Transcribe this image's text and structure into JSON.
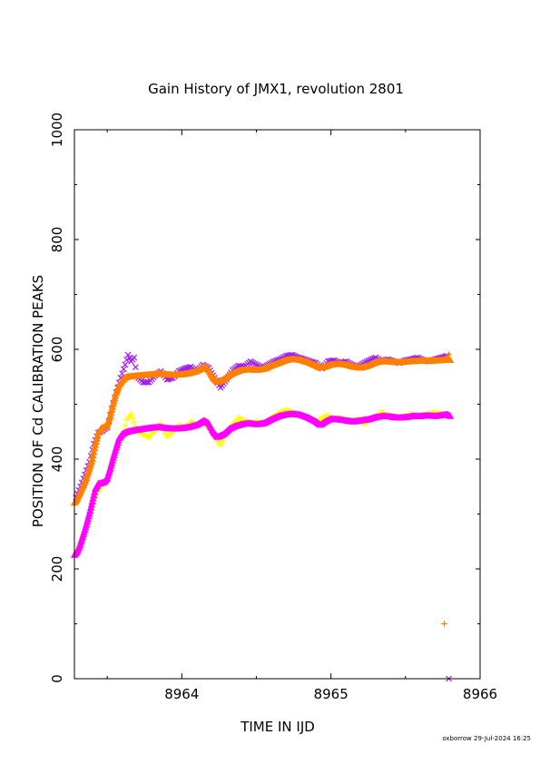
{
  "footer": "oxborrow 29-Jul-2024 16:25",
  "chart_data": {
    "type": "scatter",
    "title": "Gain History of JMX1, revolution 2801",
    "xlabel": "TIME IN IJD",
    "ylabel": "POSITION OF Cd CALIBRATION PEAKS",
    "xlim": [
      8963.28,
      8966
    ],
    "ylim": [
      0,
      1000
    ],
    "xticks": [
      8964,
      8965,
      8966
    ],
    "yticks": [
      0,
      200,
      400,
      600,
      800,
      1000
    ],
    "grid": false,
    "legend": "none",
    "series": [
      {
        "color": "#ffff00",
        "marker": "plus",
        "points": [
          [
            8963.29,
            230
          ],
          [
            8963.32,
            248
          ],
          [
            8963.36,
            275
          ],
          [
            8963.4,
            308
          ],
          [
            8963.43,
            338
          ],
          [
            8963.46,
            350
          ],
          [
            8963.5,
            360
          ],
          [
            8963.53,
            382
          ],
          [
            8963.56,
            412
          ],
          [
            8963.6,
            440
          ],
          [
            8963.63,
            472
          ],
          [
            8963.66,
            482
          ],
          [
            8963.7,
            452
          ],
          [
            8963.74,
            445
          ],
          [
            8963.78,
            440
          ],
          [
            8963.82,
            452
          ],
          [
            8963.86,
            465
          ],
          [
            8963.9,
            440
          ],
          [
            8963.94,
            450
          ],
          [
            8963.98,
            462
          ],
          [
            8964.02,
            455
          ],
          [
            8964.06,
            468
          ],
          [
            8964.1,
            462
          ],
          [
            8964.14,
            470
          ],
          [
            8964.18,
            458
          ],
          [
            8964.22,
            440
          ],
          [
            8964.26,
            425
          ],
          [
            8964.3,
            450
          ],
          [
            8964.34,
            462
          ],
          [
            8964.38,
            475
          ],
          [
            8964.42,
            470
          ],
          [
            8964.46,
            465
          ],
          [
            8964.5,
            468
          ],
          [
            8964.54,
            462
          ],
          [
            8964.58,
            472
          ],
          [
            8964.62,
            478
          ],
          [
            8964.66,
            485
          ],
          [
            8964.7,
            490
          ],
          [
            8964.74,
            485
          ],
          [
            8964.78,
            482
          ],
          [
            8964.82,
            478
          ],
          [
            8964.86,
            472
          ],
          [
            8964.9,
            468
          ],
          [
            8964.94,
            475
          ],
          [
            8964.98,
            480
          ],
          [
            8965.02,
            472
          ],
          [
            8965.06,
            475
          ],
          [
            8965.1,
            470
          ],
          [
            8965.14,
            468
          ],
          [
            8965.18,
            472
          ],
          [
            8965.22,
            465
          ],
          [
            8965.26,
            470
          ],
          [
            8965.3,
            478
          ],
          [
            8965.34,
            485
          ],
          [
            8965.38,
            480
          ],
          [
            8965.42,
            478
          ],
          [
            8965.46,
            475
          ],
          [
            8965.5,
            478
          ],
          [
            8965.54,
            482
          ],
          [
            8965.58,
            478
          ],
          [
            8965.62,
            480
          ],
          [
            8965.66,
            482
          ],
          [
            8965.7,
            485
          ],
          [
            8965.74,
            482
          ],
          [
            8965.78,
            480
          ]
        ]
      },
      {
        "color": "#ff00ff",
        "marker": "triangle",
        "points": [
          [
            8963.28,
            225
          ],
          [
            8963.3,
            232
          ],
          [
            8963.32,
            245
          ],
          [
            8963.34,
            262
          ],
          [
            8963.36,
            280
          ],
          [
            8963.38,
            300
          ],
          [
            8963.4,
            322
          ],
          [
            8963.42,
            345
          ],
          [
            8963.44,
            355
          ],
          [
            8963.46,
            356
          ],
          [
            8963.48,
            358
          ],
          [
            8963.5,
            365
          ],
          [
            8963.52,
            382
          ],
          [
            8963.54,
            402
          ],
          [
            8963.56,
            420
          ],
          [
            8963.58,
            438
          ],
          [
            8963.6,
            445
          ],
          [
            8963.62,
            448
          ],
          [
            8963.64,
            450
          ],
          [
            8963.66,
            451
          ],
          [
            8963.7,
            453
          ],
          [
            8963.75,
            455
          ],
          [
            8963.8,
            457
          ],
          [
            8963.85,
            458
          ],
          [
            8963.9,
            456
          ],
          [
            8963.95,
            455
          ],
          [
            8964.0,
            456
          ],
          [
            8964.05,
            458
          ],
          [
            8964.1,
            462
          ],
          [
            8964.15,
            470
          ],
          [
            8964.18,
            465
          ],
          [
            8964.21,
            450
          ],
          [
            8964.24,
            440
          ],
          [
            8964.28,
            445
          ],
          [
            8964.32,
            455
          ],
          [
            8964.36,
            460
          ],
          [
            8964.4,
            463
          ],
          [
            8964.45,
            465
          ],
          [
            8964.5,
            463
          ],
          [
            8964.55,
            465
          ],
          [
            8964.6,
            472
          ],
          [
            8964.65,
            478
          ],
          [
            8964.7,
            481
          ],
          [
            8964.75,
            482
          ],
          [
            8964.8,
            480
          ],
          [
            8964.85,
            475
          ],
          [
            8964.9,
            468
          ],
          [
            8964.93,
            462
          ],
          [
            8964.96,
            468
          ],
          [
            8965.0,
            473
          ],
          [
            8965.05,
            472
          ],
          [
            8965.1,
            470
          ],
          [
            8965.15,
            468
          ],
          [
            8965.2,
            470
          ],
          [
            8965.25,
            472
          ],
          [
            8965.3,
            476
          ],
          [
            8965.35,
            478
          ],
          [
            8965.4,
            477
          ],
          [
            8965.45,
            475
          ],
          [
            8965.5,
            476
          ],
          [
            8965.55,
            478
          ],
          [
            8965.6,
            478
          ],
          [
            8965.65,
            479
          ],
          [
            8965.7,
            478
          ],
          [
            8965.75,
            480
          ],
          [
            8965.78,
            481
          ],
          [
            8965.8,
            478
          ]
        ]
      },
      {
        "color": "#a020f0",
        "marker": "cross",
        "points": [
          [
            8963.29,
            330
          ],
          [
            8963.32,
            350
          ],
          [
            8963.35,
            372
          ],
          [
            8963.38,
            395
          ],
          [
            8963.41,
            428
          ],
          [
            8963.44,
            448
          ],
          [
            8963.47,
            452
          ],
          [
            8963.5,
            458
          ],
          [
            8963.53,
            492
          ],
          [
            8963.56,
            522
          ],
          [
            8963.59,
            548
          ],
          [
            8963.62,
            572
          ],
          [
            8963.64,
            590
          ],
          [
            8963.66,
            578
          ],
          [
            8963.68,
            585
          ],
          [
            8963.7,
            550
          ],
          [
            8963.74,
            540
          ],
          [
            8963.78,
            540
          ],
          [
            8963.82,
            552
          ],
          [
            8963.86,
            560
          ],
          [
            8963.9,
            545
          ],
          [
            8963.94,
            548
          ],
          [
            8963.98,
            560
          ],
          [
            8964.02,
            565
          ],
          [
            8964.06,
            568
          ],
          [
            8964.1,
            560
          ],
          [
            8964.14,
            572
          ],
          [
            8964.18,
            566
          ],
          [
            8964.22,
            548
          ],
          [
            8964.26,
            530
          ],
          [
            8964.3,
            545
          ],
          [
            8964.34,
            562
          ],
          [
            8964.38,
            570
          ],
          [
            8964.42,
            568
          ],
          [
            8964.46,
            578
          ],
          [
            8964.5,
            572
          ],
          [
            8964.54,
            566
          ],
          [
            8964.58,
            572
          ],
          [
            8964.62,
            578
          ],
          [
            8964.66,
            582
          ],
          [
            8964.7,
            588
          ],
          [
            8964.74,
            590
          ],
          [
            8964.78,
            585
          ],
          [
            8964.82,
            582
          ],
          [
            8964.86,
            578
          ],
          [
            8964.9,
            575
          ],
          [
            8964.94,
            565
          ],
          [
            8964.98,
            578
          ],
          [
            8965.02,
            580
          ],
          [
            8965.06,
            575
          ],
          [
            8965.1,
            578
          ],
          [
            8965.14,
            572
          ],
          [
            8965.18,
            568
          ],
          [
            8965.22,
            575
          ],
          [
            8965.26,
            580
          ],
          [
            8965.3,
            585
          ],
          [
            8965.34,
            578
          ],
          [
            8965.38,
            582
          ],
          [
            8965.42,
            578
          ],
          [
            8965.46,
            575
          ],
          [
            8965.5,
            580
          ],
          [
            8965.54,
            582
          ],
          [
            8965.58,
            585
          ],
          [
            8965.62,
            580
          ],
          [
            8965.66,
            578
          ],
          [
            8965.7,
            582
          ],
          [
            8965.74,
            585
          ],
          [
            8965.78,
            588
          ],
          [
            8965.79,
            0
          ]
        ]
      },
      {
        "color": "#ff8000",
        "marker": "triangle",
        "points": [
          [
            8963.28,
            320
          ],
          [
            8963.3,
            328
          ],
          [
            8963.32,
            340
          ],
          [
            8963.34,
            352
          ],
          [
            8963.36,
            365
          ],
          [
            8963.38,
            382
          ],
          [
            8963.4,
            400
          ],
          [
            8963.42,
            425
          ],
          [
            8963.44,
            448
          ],
          [
            8963.46,
            456
          ],
          [
            8963.48,
            458
          ],
          [
            8963.5,
            462
          ],
          [
            8963.52,
            478
          ],
          [
            8963.54,
            500
          ],
          [
            8963.56,
            520
          ],
          [
            8963.58,
            535
          ],
          [
            8963.6,
            543
          ],
          [
            8963.62,
            548
          ],
          [
            8963.64,
            550
          ],
          [
            8963.68,
            551
          ],
          [
            8963.72,
            552
          ],
          [
            8963.76,
            553
          ],
          [
            8963.8,
            554
          ],
          [
            8963.85,
            555
          ],
          [
            8963.9,
            554
          ],
          [
            8963.95,
            553
          ],
          [
            8964.0,
            554
          ],
          [
            8964.05,
            556
          ],
          [
            8964.1,
            560
          ],
          [
            8964.15,
            568
          ],
          [
            8964.18,
            562
          ],
          [
            8964.21,
            548
          ],
          [
            8964.24,
            540
          ],
          [
            8964.28,
            545
          ],
          [
            8964.32,
            553
          ],
          [
            8964.36,
            558
          ],
          [
            8964.4,
            562
          ],
          [
            8964.45,
            563
          ],
          [
            8964.5,
            562
          ],
          [
            8964.55,
            564
          ],
          [
            8964.6,
            570
          ],
          [
            8964.65,
            575
          ],
          [
            8964.7,
            580
          ],
          [
            8964.75,
            582
          ],
          [
            8964.8,
            580
          ],
          [
            8964.85,
            576
          ],
          [
            8964.9,
            570
          ],
          [
            8964.93,
            566
          ],
          [
            8964.96,
            568
          ],
          [
            8965.0,
            572
          ],
          [
            8965.05,
            573
          ],
          [
            8965.1,
            572
          ],
          [
            8965.15,
            568
          ],
          [
            8965.2,
            566
          ],
          [
            8965.25,
            570
          ],
          [
            8965.3,
            576
          ],
          [
            8965.35,
            578
          ],
          [
            8965.4,
            577
          ],
          [
            8965.45,
            576
          ],
          [
            8965.5,
            577
          ],
          [
            8965.55,
            578
          ],
          [
            8965.6,
            579
          ],
          [
            8965.65,
            579
          ],
          [
            8965.7,
            579
          ],
          [
            8965.75,
            580
          ],
          [
            8965.78,
            582
          ],
          [
            8965.8,
            580
          ]
        ]
      },
      {
        "color": "#ff8000",
        "marker": "plus-sparse",
        "points": [
          [
            8965.76,
            100
          ],
          [
            8965.78,
            582
          ],
          [
            8965.79,
            590
          ]
        ]
      }
    ]
  }
}
